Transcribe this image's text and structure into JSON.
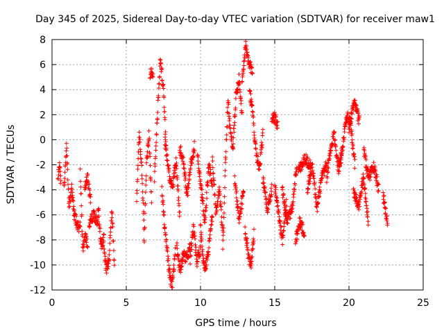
{
  "chart_data": {
    "type": "scatter",
    "title": "Day 345 of 2025, Sidereal Day-to-day VTEC variation (SDTVAR) for receiver maw1",
    "xlabel": "GPS time / hours",
    "ylabel": "SDTVAR / TECUs",
    "xlim": [
      0,
      25
    ],
    "ylim": [
      -12,
      8
    ],
    "xticks": [
      0,
      5,
      10,
      15,
      20,
      25
    ],
    "yticks": [
      -12,
      -10,
      -8,
      -6,
      -4,
      -2,
      0,
      2,
      4,
      6,
      8
    ],
    "grid": true,
    "marker": "+",
    "marker_color": "#ff0000",
    "series": [
      {
        "name": "SDTVAR",
        "segments": [
          {
            "x0": 0.4,
            "x1": 0.6,
            "anchors": [
              -3.2,
              -2.0,
              -3.5
            ]
          },
          {
            "x0": 0.8,
            "x1": 1.5,
            "anchors": [
              -4.0,
              -0.5,
              -5.5,
              -4.0,
              -6.0
            ]
          },
          {
            "x0": 1.5,
            "x1": 1.9,
            "anchors": [
              -6.0,
              -6.8,
              -7.0
            ]
          },
          {
            "x0": 1.9,
            "x1": 2.4,
            "anchors": [
              -2.5,
              -8.8,
              -7.5,
              -8.5
            ]
          },
          {
            "x0": 2.2,
            "x1": 2.6,
            "anchors": [
              -4.0,
              -3.0,
              -5.0
            ]
          },
          {
            "x0": 2.5,
            "x1": 3.1,
            "anchors": [
              -6.8,
              -6.0,
              -6.5
            ]
          },
          {
            "x0": 3.1,
            "x1": 3.5,
            "anchors": [
              -5.2,
              -8.5,
              -7.8
            ]
          },
          {
            "x0": 3.5,
            "x1": 4.2,
            "anchors": [
              -9.0,
              -10.3,
              -9.5,
              -5.5,
              -10.0
            ]
          },
          {
            "x0": 5.7,
            "x1": 6.2,
            "anchors": [
              -4.5,
              0.5,
              -2.0,
              -7.0
            ]
          },
          {
            "x0": 6.2,
            "x1": 6.7,
            "anchors": [
              -8.3,
              -2.0,
              0.5,
              -5.0
            ]
          },
          {
            "x0": 6.6,
            "x1": 6.8,
            "anchors": [
              5.2,
              5.4
            ]
          },
          {
            "x0": 6.9,
            "x1": 7.7,
            "anchors": [
              -3.0,
              2.0,
              6.5,
              4.0,
              -1.0
            ]
          },
          {
            "x0": 7.4,
            "x1": 8.3,
            "anchors": [
              -4.0,
              -7.5,
              -10.0,
              -11.8,
              -9.0
            ]
          },
          {
            "x0": 7.6,
            "x1": 8.6,
            "anchors": [
              0.0,
              -2.5,
              -4.0,
              -1.5,
              -6.0
            ]
          },
          {
            "x0": 8.4,
            "x1": 9.3,
            "anchors": [
              -8.5,
              -10.5,
              -9.0,
              -9.5,
              -8.5
            ]
          },
          {
            "x0": 8.6,
            "x1": 9.6,
            "anchors": [
              -0.5,
              -1.8,
              -4.5,
              -2.0,
              -0.5
            ]
          },
          {
            "x0": 9.3,
            "x1": 10.0,
            "anchors": [
              -9.5,
              -7.0,
              -9.8,
              -8.5
            ]
          },
          {
            "x0": 9.8,
            "x1": 10.8,
            "anchors": [
              -1.0,
              -4.0,
              -6.5,
              -2.0,
              -3.5
            ]
          },
          {
            "x0": 10.0,
            "x1": 10.8,
            "anchors": [
              -7.0,
              -10.5,
              -9.0,
              -6.0
            ]
          },
          {
            "x0": 10.8,
            "x1": 11.5,
            "anchors": [
              -1.5,
              -6.0,
              -4.0,
              -7.5
            ]
          },
          {
            "x0": 11.5,
            "x1": 12.2,
            "anchors": [
              -9.0,
              -2.0,
              3.0,
              0.5,
              -1.0
            ]
          },
          {
            "x0": 12.2,
            "x1": 12.8,
            "anchors": [
              0.0,
              3.5,
              5.0,
              2.0
            ]
          },
          {
            "x0": 12.3,
            "x1": 12.9,
            "anchors": [
              -3.0,
              -6.5,
              -4.0
            ]
          },
          {
            "x0": 12.8,
            "x1": 13.5,
            "anchors": [
              4.5,
              7.5,
              6.0,
              5.5
            ]
          },
          {
            "x0": 13.0,
            "x1": 13.6,
            "anchors": [
              -7.0,
              -9.0,
              -10.0,
              -7.5
            ]
          },
          {
            "x0": 13.3,
            "x1": 14.2,
            "anchors": [
              4.0,
              2.0,
              -1.0,
              -2.5,
              0.5
            ]
          },
          {
            "x0": 14.2,
            "x1": 14.8,
            "anchors": [
              -3.0,
              -5.5,
              -4.0
            ]
          },
          {
            "x0": 14.8,
            "x1": 15.2,
            "anchors": [
              1.5,
              1.8,
              1.0
            ]
          },
          {
            "x0": 15.0,
            "x1": 15.8,
            "anchors": [
              -3.5,
              -6.0,
              -8.0,
              -5.0
            ]
          },
          {
            "x0": 15.5,
            "x1": 16.5,
            "anchors": [
              -4.0,
              -6.5,
              -5.5,
              -2.0
            ]
          },
          {
            "x0": 16.4,
            "x1": 17.0,
            "anchors": [
              -8.0,
              -6.5,
              -7.5
            ]
          },
          {
            "x0": 16.6,
            "x1": 17.4,
            "anchors": [
              -2.5,
              -1.5,
              -2.0
            ]
          },
          {
            "x0": 17.2,
            "x1": 18.5,
            "anchors": [
              -4.0,
              -2.0,
              -5.5,
              -3.0,
              -2.0
            ]
          },
          {
            "x0": 18.5,
            "x1": 19.5,
            "anchors": [
              -3.0,
              -1.0,
              0.5,
              -2.0,
              -1.5
            ]
          },
          {
            "x0": 19.3,
            "x1": 20.4,
            "anchors": [
              -2.5,
              -0.5,
              2.0,
              1.0,
              -2.0
            ]
          },
          {
            "x0": 20.0,
            "x1": 20.7,
            "anchors": [
              1.0,
              3.0,
              1.5
            ]
          },
          {
            "x0": 20.3,
            "x1": 21.3,
            "anchors": [
              -4.0,
              -5.5,
              -3.0,
              -6.5
            ]
          },
          {
            "x0": 21.0,
            "x1": 22.0,
            "anchors": [
              -1.0,
              -3.0,
              -2.0,
              -4.0
            ]
          },
          {
            "x0": 22.3,
            "x1": 22.6,
            "anchors": [
              -4.5,
              -6.5
            ]
          }
        ]
      }
    ]
  }
}
